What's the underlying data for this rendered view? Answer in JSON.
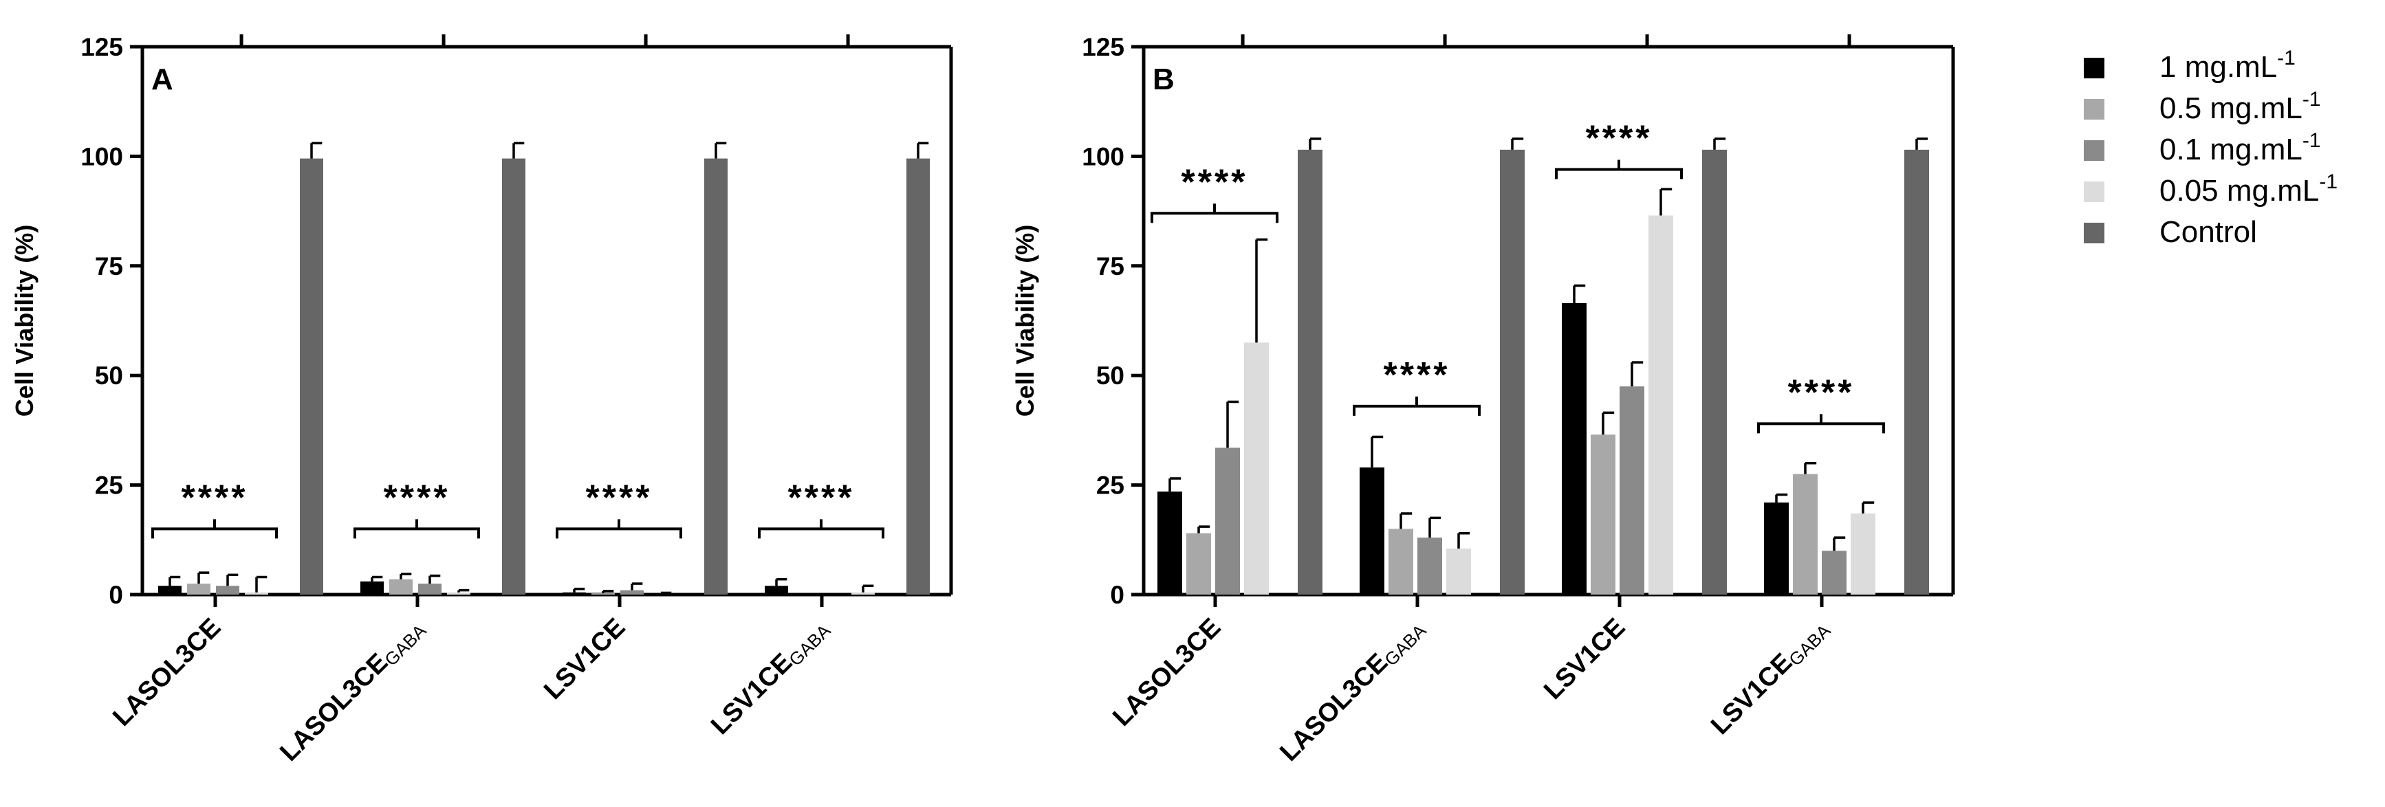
{
  "chart_data": [
    {
      "type": "bar",
      "panel": "A",
      "ylabel": "Cell Viability (%)",
      "ylim": [
        0,
        125
      ],
      "yticks": [
        0,
        25,
        50,
        75,
        100,
        125
      ],
      "categories": [
        {
          "main": "LASOL3CE",
          "sub": ""
        },
        {
          "main": "LASOL3CE",
          "sub": "GABA"
        },
        {
          "main": "LSV1CE",
          "sub": ""
        },
        {
          "main": "LSV1CE",
          "sub": "GABA"
        }
      ],
      "series": [
        {
          "name": "1 mg.mL-1",
          "values": [
            2,
            3,
            0.5,
            2
          ],
          "errors": [
            2,
            1,
            0.8,
            1.5
          ]
        },
        {
          "name": "0.5 mg.mL-1",
          "values": [
            2.5,
            3.5,
            0.3,
            0
          ],
          "errors": [
            2.5,
            1.2,
            0.5,
            0
          ]
        },
        {
          "name": "0.1 mg.mL-1",
          "values": [
            2,
            2.5,
            1,
            0
          ],
          "errors": [
            2.5,
            1.8,
            1.5,
            0
          ]
        },
        {
          "name": "0.05 mg.mL-1",
          "values": [
            0.5,
            0.5,
            0,
            0.5
          ],
          "errors": [
            3.5,
            0.5,
            0.4,
            1.5
          ]
        },
        {
          "name": "Control",
          "values": [
            99.5,
            99.5,
            99.5,
            99.5
          ],
          "errors": [
            3.5,
            3.5,
            3.5,
            3.5
          ]
        }
      ],
      "annotations": [
        {
          "text": "****",
          "group": 0,
          "y": 15
        },
        {
          "text": "****",
          "group": 1,
          "y": 15
        },
        {
          "text": "****",
          "group": 2,
          "y": 15
        },
        {
          "text": "****",
          "group": 3,
          "y": 15
        }
      ]
    },
    {
      "type": "bar",
      "panel": "B",
      "ylabel": "Cell Viability (%)",
      "ylim": [
        0,
        125
      ],
      "yticks": [
        0,
        25,
        50,
        75,
        100,
        125
      ],
      "categories": [
        {
          "main": "LASOL3CE",
          "sub": ""
        },
        {
          "main": "LASOL3CE",
          "sub": "GABA"
        },
        {
          "main": "LSV1CE",
          "sub": ""
        },
        {
          "main": "LSV1CE",
          "sub": "GABA"
        }
      ],
      "series": [
        {
          "name": "1 mg.mL-1",
          "values": [
            23.5,
            29,
            66.5,
            21
          ],
          "errors": [
            3,
            7,
            4,
            1.8
          ]
        },
        {
          "name": "0.5 mg.mL-1",
          "values": [
            14,
            15,
            36.5,
            27.5
          ],
          "errors": [
            1.5,
            3.5,
            5,
            2.5
          ]
        },
        {
          "name": "0.1 mg.mL-1",
          "values": [
            33.5,
            13,
            47.5,
            10
          ],
          "errors": [
            10.5,
            4.5,
            5.5,
            3
          ]
        },
        {
          "name": "0.05 mg.mL-1",
          "values": [
            57.5,
            10.5,
            86.5,
            18.5
          ],
          "errors": [
            23.5,
            3.5,
            6,
            2.5
          ]
        },
        {
          "name": "Control",
          "values": [
            101.5,
            101.5,
            101.5,
            101.5
          ],
          "errors": [
            2.5,
            2.5,
            2.5,
            2.5
          ]
        }
      ],
      "annotations": [
        {
          "text": "****",
          "group": 0,
          "y": 87
        },
        {
          "text": "****",
          "group": 1,
          "y": 43
        },
        {
          "text": "****",
          "group": 2,
          "y": 97
        },
        {
          "text": "****",
          "group": 3,
          "y": 39
        }
      ]
    }
  ],
  "legend": {
    "items": [
      {
        "label": "1 mg.mL",
        "sup": "-1",
        "color": "#000000"
      },
      {
        "label": "0.5 mg.mL",
        "sup": "-1",
        "color": "#a8a8a8"
      },
      {
        "label": "0.1 mg.mL",
        "sup": "-1",
        "color": "#8a8a8a"
      },
      {
        "label": "0.05 mg.mL",
        "sup": "-1",
        "color": "#dcdcdc"
      },
      {
        "label": "Control",
        "sup": "",
        "color": "#666666"
      }
    ]
  },
  "colors": [
    "#000000",
    "#a8a8a8",
    "#8a8a8a",
    "#dcdcdc",
    "#666666"
  ]
}
